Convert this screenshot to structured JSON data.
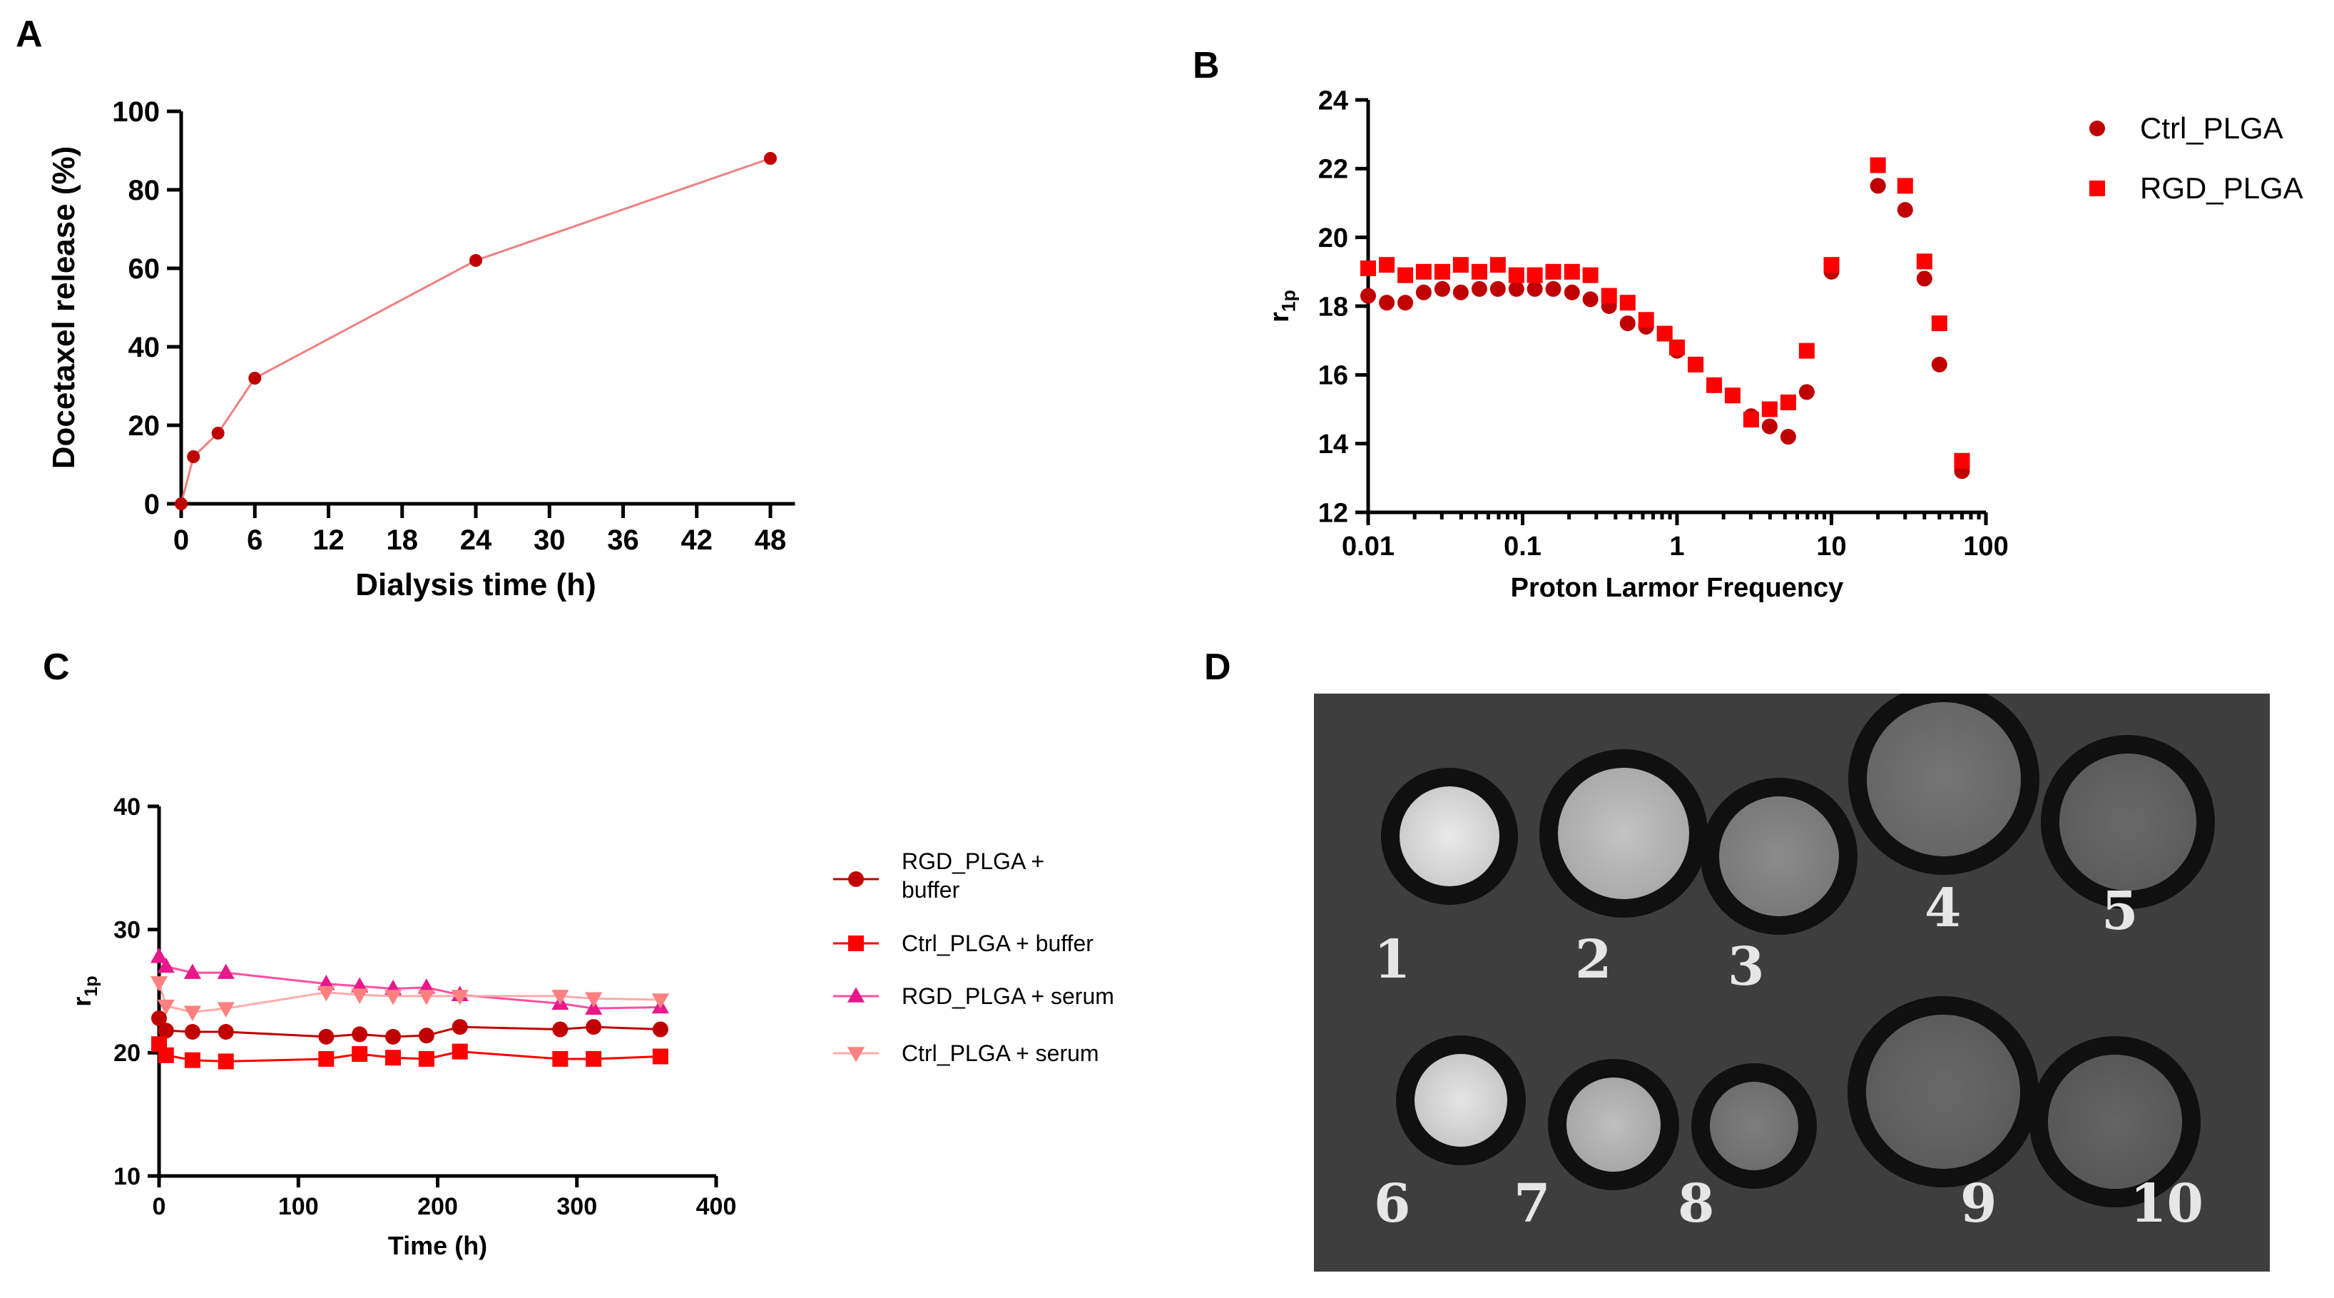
{
  "panels": {
    "A": "A",
    "B": "B",
    "C": "C",
    "D": "D"
  },
  "chart_data": [
    {
      "id": "A",
      "type": "line",
      "xlabel": "Dialysis time (h)",
      "ylabel": "Docetaxel release (%)",
      "xlim": [
        0,
        50
      ],
      "ylim": [
        0,
        100
      ],
      "xticks": [
        0,
        6,
        12,
        18,
        24,
        30,
        36,
        42,
        48
      ],
      "yticks": [
        0,
        20,
        40,
        60,
        80,
        100
      ],
      "series": [
        {
          "color": "#c00000",
          "line_color": "#f08080",
          "x": [
            0,
            1,
            3,
            6,
            24,
            48
          ],
          "y": [
            0,
            12,
            18,
            32,
            62,
            88
          ]
        }
      ]
    },
    {
      "id": "B",
      "type": "scatter",
      "xlabel": "Proton Larmor Frequency",
      "ylabel": "r1p",
      "xscale": "log",
      "xlim": [
        0.01,
        100
      ],
      "ylim": [
        12,
        24
      ],
      "xticks": [
        "0.01",
        "0.1",
        "1",
        "10",
        "100"
      ],
      "yticks": [
        12,
        14,
        16,
        18,
        20,
        22,
        24
      ],
      "legend": "top-right",
      "series": [
        {
          "name": "Ctrl_PLGA",
          "marker": "circle",
          "color": "#c00000",
          "x": [
            0.01,
            0.0132,
            0.0174,
            0.0229,
            0.0302,
            0.0398,
            0.0525,
            0.0692,
            0.0912,
            0.12,
            0.158,
            0.209,
            0.275,
            0.363,
            0.479,
            0.631,
            0.832,
            1.0,
            1.32,
            1.74,
            2.29,
            3.02,
            3.98,
            5.25,
            6.92,
            10,
            20,
            30,
            40,
            50,
            70
          ],
          "y": [
            18.3,
            18.1,
            18.1,
            18.4,
            18.5,
            18.4,
            18.5,
            18.5,
            18.5,
            18.5,
            18.5,
            18.4,
            18.2,
            18.0,
            17.5,
            17.4,
            17.2,
            16.7,
            16.3,
            15.7,
            15.4,
            14.8,
            14.5,
            14.2,
            15.5,
            19.0,
            21.5,
            20.8,
            18.8,
            16.3,
            13.2
          ]
        },
        {
          "name": "RGD_PLGA",
          "marker": "square",
          "color": "#ff0000",
          "x": [
            0.01,
            0.0132,
            0.0174,
            0.0229,
            0.0302,
            0.0398,
            0.0525,
            0.0692,
            0.0912,
            0.12,
            0.158,
            0.209,
            0.275,
            0.363,
            0.479,
            0.631,
            0.832,
            1.0,
            1.32,
            1.74,
            2.29,
            3.02,
            3.98,
            5.25,
            6.92,
            10,
            20,
            30,
            40,
            50,
            70
          ],
          "y": [
            19.1,
            19.2,
            18.9,
            19.0,
            19.0,
            19.2,
            19.0,
            19.2,
            18.9,
            18.9,
            19.0,
            19.0,
            18.9,
            18.3,
            18.1,
            17.6,
            17.2,
            16.8,
            16.3,
            15.7,
            15.4,
            14.7,
            15.0,
            15.2,
            16.7,
            19.2,
            22.1,
            21.5,
            19.3,
            17.5,
            13.5
          ]
        }
      ]
    },
    {
      "id": "C",
      "type": "line",
      "xlabel": "Time (h)",
      "ylabel": "r1p",
      "xlim": [
        0,
        400
      ],
      "ylim": [
        10,
        40
      ],
      "xticks": [
        0,
        100,
        200,
        300,
        400
      ],
      "yticks": [
        10,
        20,
        30,
        40
      ],
      "legend": "right",
      "series": [
        {
          "name": "RGD_PLGA + buffer",
          "name_lines": [
            "RGD_PLGA +",
            "buffer"
          ],
          "marker": "circle",
          "color": "#c00000",
          "line_color": "#c00000",
          "x": [
            0,
            5,
            24,
            48,
            120,
            144,
            168,
            192,
            216,
            288,
            312,
            360
          ],
          "y": [
            22.8,
            21.8,
            21.7,
            21.7,
            21.3,
            21.5,
            21.3,
            21.4,
            22.1,
            21.9,
            22.1,
            21.9
          ]
        },
        {
          "name": "Ctrl_PLGA + buffer",
          "marker": "square",
          "color": "#ff0000",
          "line_color": "#ff0000",
          "x": [
            0,
            5,
            24,
            48,
            120,
            144,
            168,
            192,
            216,
            288,
            312,
            360
          ],
          "y": [
            20.7,
            19.8,
            19.4,
            19.3,
            19.5,
            19.9,
            19.6,
            19.5,
            20.1,
            19.5,
            19.5,
            19.7
          ]
        },
        {
          "name": "RGD_PLGA + serum",
          "marker": "triangle-up",
          "color": "#e8178a",
          "line_color": "#ff4fa0",
          "x": [
            0,
            5,
            24,
            48,
            120,
            144,
            168,
            192,
            216,
            288,
            312,
            360
          ],
          "y": [
            27.8,
            27.0,
            26.5,
            26.5,
            25.6,
            25.4,
            25.2,
            25.3,
            24.7,
            24.0,
            23.6,
            23.7
          ]
        },
        {
          "name": "Ctrl_PLGA + serum",
          "marker": "triangle-down",
          "color": "#ff8080",
          "line_color": "#ffaaaa",
          "x": [
            0,
            5,
            24,
            48,
            120,
            144,
            168,
            192,
            216,
            288,
            312,
            360
          ],
          "y": [
            25.7,
            23.8,
            23.3,
            23.6,
            24.9,
            24.7,
            24.6,
            24.6,
            24.6,
            24.6,
            24.4,
            24.3
          ]
        }
      ]
    }
  ],
  "mri_image": {
    "tubes": [
      {
        "label": "1",
        "brightness": 0.9
      },
      {
        "label": "2",
        "brightness": 0.72
      },
      {
        "label": "3",
        "brightness": 0.46
      },
      {
        "label": "4",
        "brightness": 0.36
      },
      {
        "label": "5",
        "brightness": 0.3
      },
      {
        "label": "6",
        "brightness": 0.88
      },
      {
        "label": "7",
        "brightness": 0.7
      },
      {
        "label": "8",
        "brightness": 0.4
      },
      {
        "label": "9",
        "brightness": 0.3
      },
      {
        "label": "10",
        "brightness": 0.28
      }
    ]
  }
}
